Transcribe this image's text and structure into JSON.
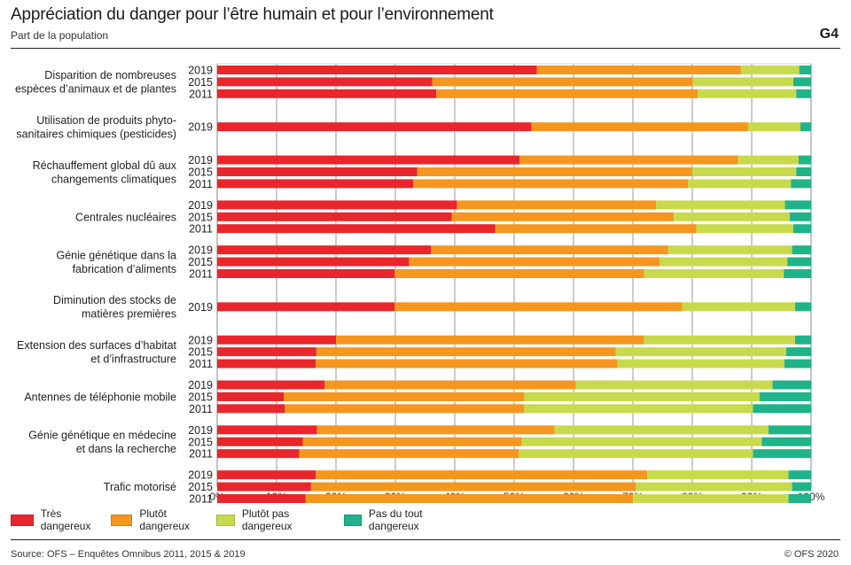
{
  "header": {
    "title": "Appréciation du danger pour l’être humain et pour l’environnement",
    "subtitle": "Part de la population",
    "graphic_number": "G4"
  },
  "footer": {
    "source": "Source: OFS – Enquêtes Omnibus 2011, 2015 & 2019",
    "copyright": "© OFS 2020"
  },
  "chart_data": {
    "type": "bar",
    "orientation": "horizontal",
    "stacked": true,
    "normalized": true,
    "title": "Appréciation du danger pour l’être humain et pour l’environnement",
    "subtitle": "Part de la population",
    "xlabel": "",
    "ylabel": "",
    "xlim": [
      0,
      100
    ],
    "x_ticks": [
      "0%",
      "10%",
      "20%",
      "30%",
      "40%",
      "50%",
      "60%",
      "70%",
      "80%",
      "90%",
      "100%"
    ],
    "grid": true,
    "legend_position": "bottom-left",
    "series": [
      {
        "name": "Très dangereux",
        "color": "#e8262b"
      },
      {
        "name": "Plutôt dangereux",
        "color": "#f5961f"
      },
      {
        "name": "Plutôt pas dangereux",
        "color": "#c8da4c"
      },
      {
        "name": "Pas du tout dangereux",
        "color": "#1fb38a"
      }
    ],
    "groups": [
      {
        "label": [
          "Disparition de nombreuses",
          "espèces d’animaux et de plantes"
        ],
        "bars": [
          {
            "year": "2019",
            "values": [
              53.8,
              34.4,
              9.8,
              2.0
            ]
          },
          {
            "year": "2015",
            "values": [
              36.2,
              43.9,
              16.9,
              3.0
            ]
          },
          {
            "year": "2011",
            "values": [
              36.9,
              44.0,
              16.6,
              2.5
            ]
          }
        ]
      },
      {
        "label": [
          "Utilisation de produits phyto-",
          "sanitaires chimiques (pesticides)"
        ],
        "bars": [
          {
            "year": "2019",
            "values": [
              52.9,
              36.5,
              8.8,
              1.8
            ]
          }
        ]
      },
      {
        "label": [
          "Réchauffement global dû aux",
          "changements climatiques"
        ],
        "bars": [
          {
            "year": "2019",
            "values": [
              50.9,
              36.8,
              10.2,
              2.1
            ]
          },
          {
            "year": "2015",
            "values": [
              33.7,
              46.3,
              17.5,
              2.5
            ]
          },
          {
            "year": "2011",
            "values": [
              33.0,
              46.3,
              17.3,
              3.4
            ]
          }
        ]
      },
      {
        "label": [
          "Centrales nucléaires"
        ],
        "bars": [
          {
            "year": "2019",
            "values": [
              40.4,
              33.5,
              21.7,
              4.4
            ]
          },
          {
            "year": "2015",
            "values": [
              39.5,
              37.4,
              19.5,
              3.6
            ]
          },
          {
            "year": "2011",
            "values": [
              46.8,
              33.9,
              16.3,
              3.0
            ]
          }
        ]
      },
      {
        "label": [
          "Génie génétique dans la",
          "fabrication d’aliments"
        ],
        "bars": [
          {
            "year": "2019",
            "values": [
              36.0,
              39.9,
              20.9,
              3.2
            ]
          },
          {
            "year": "2015",
            "values": [
              32.3,
              42.2,
              21.5,
              4.0
            ]
          },
          {
            "year": "2011",
            "values": [
              29.9,
              42.0,
              23.5,
              4.6
            ]
          }
        ]
      },
      {
        "label": [
          "Diminution des stocks de",
          "matières premières"
        ],
        "bars": [
          {
            "year": "2019",
            "values": [
              29.9,
              48.4,
              19.0,
              2.7
            ]
          }
        ]
      },
      {
        "label": [
          "Extension des surfaces d’habitat",
          "et d’infrastructure"
        ],
        "bars": [
          {
            "year": "2019",
            "values": [
              20.0,
              51.9,
              25.4,
              2.7
            ]
          },
          {
            "year": "2015",
            "values": [
              16.7,
              50.4,
              28.7,
              4.2
            ]
          },
          {
            "year": "2011",
            "values": [
              16.6,
              50.8,
              28.1,
              4.5
            ]
          }
        ]
      },
      {
        "label": [
          "Antennes de téléphonie mobile"
        ],
        "bars": [
          {
            "year": "2019",
            "values": [
              18.1,
              42.3,
              33.1,
              6.5
            ]
          },
          {
            "year": "2015",
            "values": [
              11.2,
              40.5,
              39.6,
              8.7
            ]
          },
          {
            "year": "2011",
            "values": [
              11.4,
              40.3,
              38.5,
              9.8
            ]
          }
        ]
      },
      {
        "label": [
          "Génie génétique en médecine",
          "et dans la recherche"
        ],
        "bars": [
          {
            "year": "2019",
            "values": [
              16.8,
              40.0,
              36.0,
              7.2
            ]
          },
          {
            "year": "2015",
            "values": [
              14.4,
              36.9,
              40.4,
              8.3
            ]
          },
          {
            "year": "2011",
            "values": [
              13.8,
              37.0,
              39.4,
              9.8
            ]
          }
        ]
      },
      {
        "label": [
          "Trafic motorisé"
        ],
        "bars": [
          {
            "year": "2019",
            "values": [
              16.6,
              55.8,
              23.8,
              3.8
            ]
          },
          {
            "year": "2015",
            "values": [
              15.8,
              54.7,
              26.3,
              3.2
            ]
          },
          {
            "year": "2011",
            "values": [
              14.9,
              55.1,
              26.2,
              3.8
            ]
          }
        ]
      }
    ]
  }
}
